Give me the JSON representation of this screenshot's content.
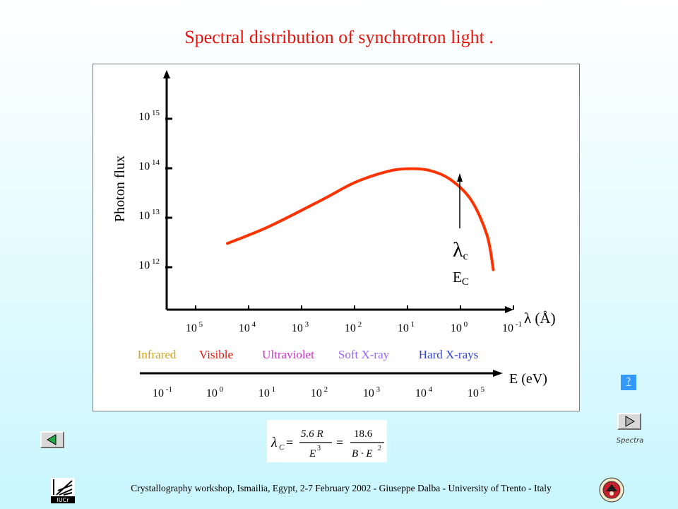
{
  "title": "Spectral distribution of synchrotron light .",
  "chart_data": {
    "type": "line",
    "y_axis": {
      "label": "Photon flux",
      "scale": "log",
      "ticks": [
        {
          "base": "10",
          "exp": "12"
        },
        {
          "base": "10",
          "exp": "13"
        },
        {
          "base": "10",
          "exp": "14"
        },
        {
          "base": "10",
          "exp": "15"
        }
      ]
    },
    "x_axis_wavelength": {
      "label": "λ (Å)",
      "scale": "log",
      "reversed": true,
      "ticks": [
        {
          "base": "10",
          "exp": "5"
        },
        {
          "base": "10",
          "exp": "4"
        },
        {
          "base": "10",
          "exp": "3"
        },
        {
          "base": "10",
          "exp": "2"
        },
        {
          "base": "10",
          "exp": "1"
        },
        {
          "base": "10",
          "exp": "0"
        },
        {
          "base": "10",
          "exp": "-1"
        }
      ]
    },
    "x_axis_energy": {
      "label": "E (eV)",
      "scale": "log",
      "ticks": [
        {
          "base": "10",
          "exp": "-1"
        },
        {
          "base": "10",
          "exp": "0"
        },
        {
          "base": "10",
          "exp": "1"
        },
        {
          "base": "10",
          "exp": "2"
        },
        {
          "base": "10",
          "exp": "3"
        },
        {
          "base": "10",
          "exp": "4"
        },
        {
          "base": "10",
          "exp": "5"
        }
      ]
    },
    "regions": [
      {
        "label": "Infrared",
        "color": "#d4a017"
      },
      {
        "label": "Visible",
        "color": "#e8130c"
      },
      {
        "label": "Ultraviolet",
        "color": "#cc33cc"
      },
      {
        "label": "Soft X-ray",
        "color": "#9966ee"
      },
      {
        "label": "Hard X-rays",
        "color": "#3344cc"
      }
    ],
    "curve": {
      "color": "#ff3300",
      "points_log_lambda_log_flux": [
        [
          4.4,
          12.48
        ],
        [
          3.6,
          12.83
        ],
        [
          2.6,
          13.37
        ],
        [
          2.0,
          13.71
        ],
        [
          1.4,
          13.93
        ],
        [
          1.0,
          13.99
        ],
        [
          0.6,
          13.96
        ],
        [
          0.2,
          13.78
        ],
        [
          -0.2,
          13.36
        ],
        [
          -0.5,
          12.65
        ],
        [
          -0.62,
          11.95
        ]
      ]
    },
    "annotation": {
      "lambda_symbol": "λ",
      "lambda_sub": "c",
      "energy_symbol": "E",
      "energy_sub": "C",
      "log_lambda": 0.0
    }
  },
  "formula": {
    "lhs": "λ",
    "lhs_sub": "C",
    "eq": "=",
    "frac1_num": "5.6 R",
    "frac1_den": "E",
    "frac1_den_exp": "3",
    "frac2_num": "18.6",
    "frac2_den": "B · E",
    "frac2_den_exp": "2"
  },
  "help_label": "?",
  "spectra_label": "Spectra",
  "footer": "Crystallography workshop, Ismailia, Egypt, 2-7 February  2002 - Giuseppe Dalba -  University of Trento - Italy",
  "logo_left_text": "IUCr",
  "colors": {
    "title": "#e8130c",
    "curve": "#ff3300",
    "help_button": "#3399ff"
  }
}
